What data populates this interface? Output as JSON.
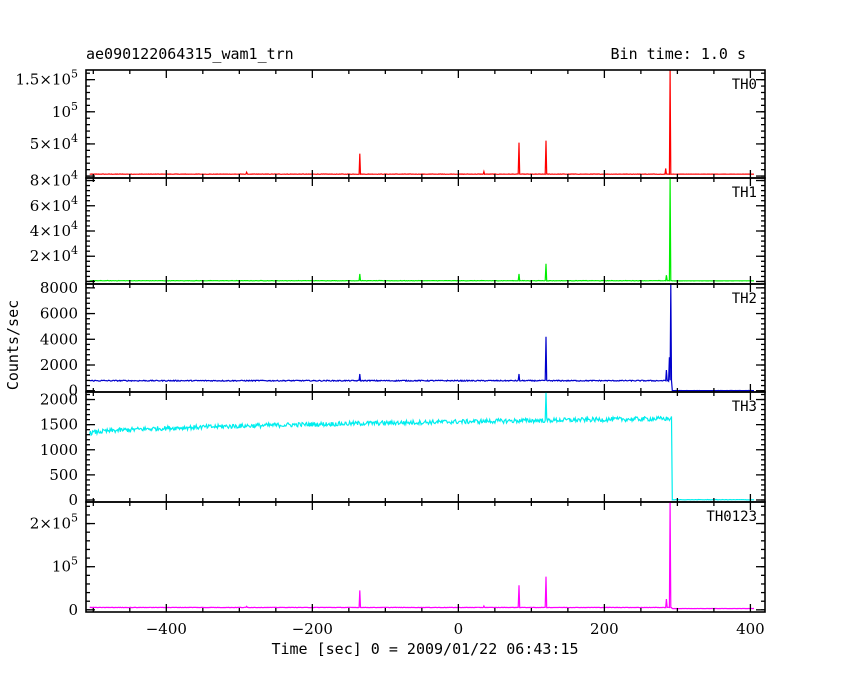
{
  "chart_data": {
    "type": "line",
    "title": "ae090122064315_wam1_trn",
    "subtitle": "Bin time: 1.0 s",
    "xlabel": "Time [sec] 0 = 2009/01/22 06:43:15",
    "ylabel": "Counts/sec",
    "xlim": [
      -510,
      420
    ],
    "x_ticks": [
      -400,
      -200,
      0,
      200,
      400
    ],
    "x_tick_labels": [
      "−400",
      "−200",
      "0",
      "200",
      "400"
    ],
    "panels": [
      {
        "name": "TH0",
        "color": "#ff0000",
        "ylim": [
          -3000,
          165000
        ],
        "y_ticks": [
          0,
          50000,
          100000,
          150000
        ],
        "y_tick_labels": [
          {
            "m": "",
            "e": ""
          },
          {
            "m": "5×10",
            "e": "4"
          },
          {
            "m": "10",
            "e": "5"
          },
          {
            "m": "1.5×10",
            "e": "5"
          }
        ],
        "baseline": 3000,
        "noise": 300,
        "trend": 0,
        "post": 3000,
        "spikes": [
          [
            -290,
            6000
          ],
          [
            -135,
            35000
          ],
          [
            35,
            7000
          ],
          [
            83,
            52000
          ],
          [
            120,
            55000
          ],
          [
            284,
            12000
          ],
          [
            290,
            165000
          ]
        ]
      },
      {
        "name": "TH1",
        "color": "#00ee00",
        "ylim": [
          -2000,
          82000
        ],
        "y_ticks": [
          0,
          20000,
          40000,
          60000,
          80000
        ],
        "y_tick_labels": [
          {
            "m": "",
            "e": ""
          },
          {
            "m": "2×10",
            "e": "4"
          },
          {
            "m": "4×10",
            "e": "4"
          },
          {
            "m": "6×10",
            "e": "4"
          },
          {
            "m": "8×10",
            "e": "4"
          }
        ],
        "baseline": 600,
        "noise": 150,
        "trend": 0,
        "post": 500,
        "spikes": [
          [
            -135,
            6000
          ],
          [
            83,
            6000
          ],
          [
            120,
            14000
          ],
          [
            285,
            5000
          ],
          [
            290,
            82000
          ]
        ]
      },
      {
        "name": "TH2",
        "color": "#0000cc",
        "ylim": [
          -100,
          8300
        ],
        "y_ticks": [
          0,
          2000,
          4000,
          6000,
          8000
        ],
        "y_tick_labels": [
          {
            "m": "0",
            "e": ""
          },
          {
            "m": "2000",
            "e": ""
          },
          {
            "m": "4000",
            "e": ""
          },
          {
            "m": "6000",
            "e": ""
          },
          {
            "m": "8000",
            "e": ""
          }
        ],
        "baseline": 780,
        "noise": 40,
        "trend": 0,
        "post": 10,
        "spikes": [
          [
            -135,
            1300
          ],
          [
            83,
            1300
          ],
          [
            120,
            4200
          ],
          [
            285,
            1600
          ],
          [
            289,
            2600
          ],
          [
            291,
            8300
          ]
        ]
      },
      {
        "name": "TH3",
        "color": "#00eeee",
        "ylim": [
          -40,
          2150
        ],
        "y_ticks": [
          0,
          500,
          1000,
          1500,
          2000
        ],
        "y_tick_labels": [
          {
            "m": "0",
            "e": ""
          },
          {
            "m": "500",
            "e": ""
          },
          {
            "m": "1000",
            "e": ""
          },
          {
            "m": "1500",
            "e": ""
          },
          {
            "m": "2000",
            "e": ""
          }
        ],
        "baseline": 1320,
        "noise": 45,
        "trend": 300,
        "post": 5,
        "spikes": [
          [
            120,
            2150
          ]
        ]
      },
      {
        "name": "TH0123",
        "color": "#ff00ff",
        "ylim": [
          -5000,
          250000
        ],
        "y_ticks": [
          0,
          100000,
          200000
        ],
        "y_tick_labels": [
          {
            "m": "0",
            "e": ""
          },
          {
            "m": "10",
            "e": "5"
          },
          {
            "m": "2×10",
            "e": "5"
          }
        ],
        "baseline": 5500,
        "noise": 400,
        "trend": 0,
        "post": 3000,
        "spikes": [
          [
            -290,
            8000
          ],
          [
            -135,
            45000
          ],
          [
            35,
            9000
          ],
          [
            83,
            57000
          ],
          [
            120,
            77000
          ],
          [
            285,
            25000
          ],
          [
            290,
            250000
          ]
        ]
      }
    ],
    "event_end": 292,
    "data_range": [
      -505,
      405
    ],
    "grid": false,
    "legend": "none"
  }
}
